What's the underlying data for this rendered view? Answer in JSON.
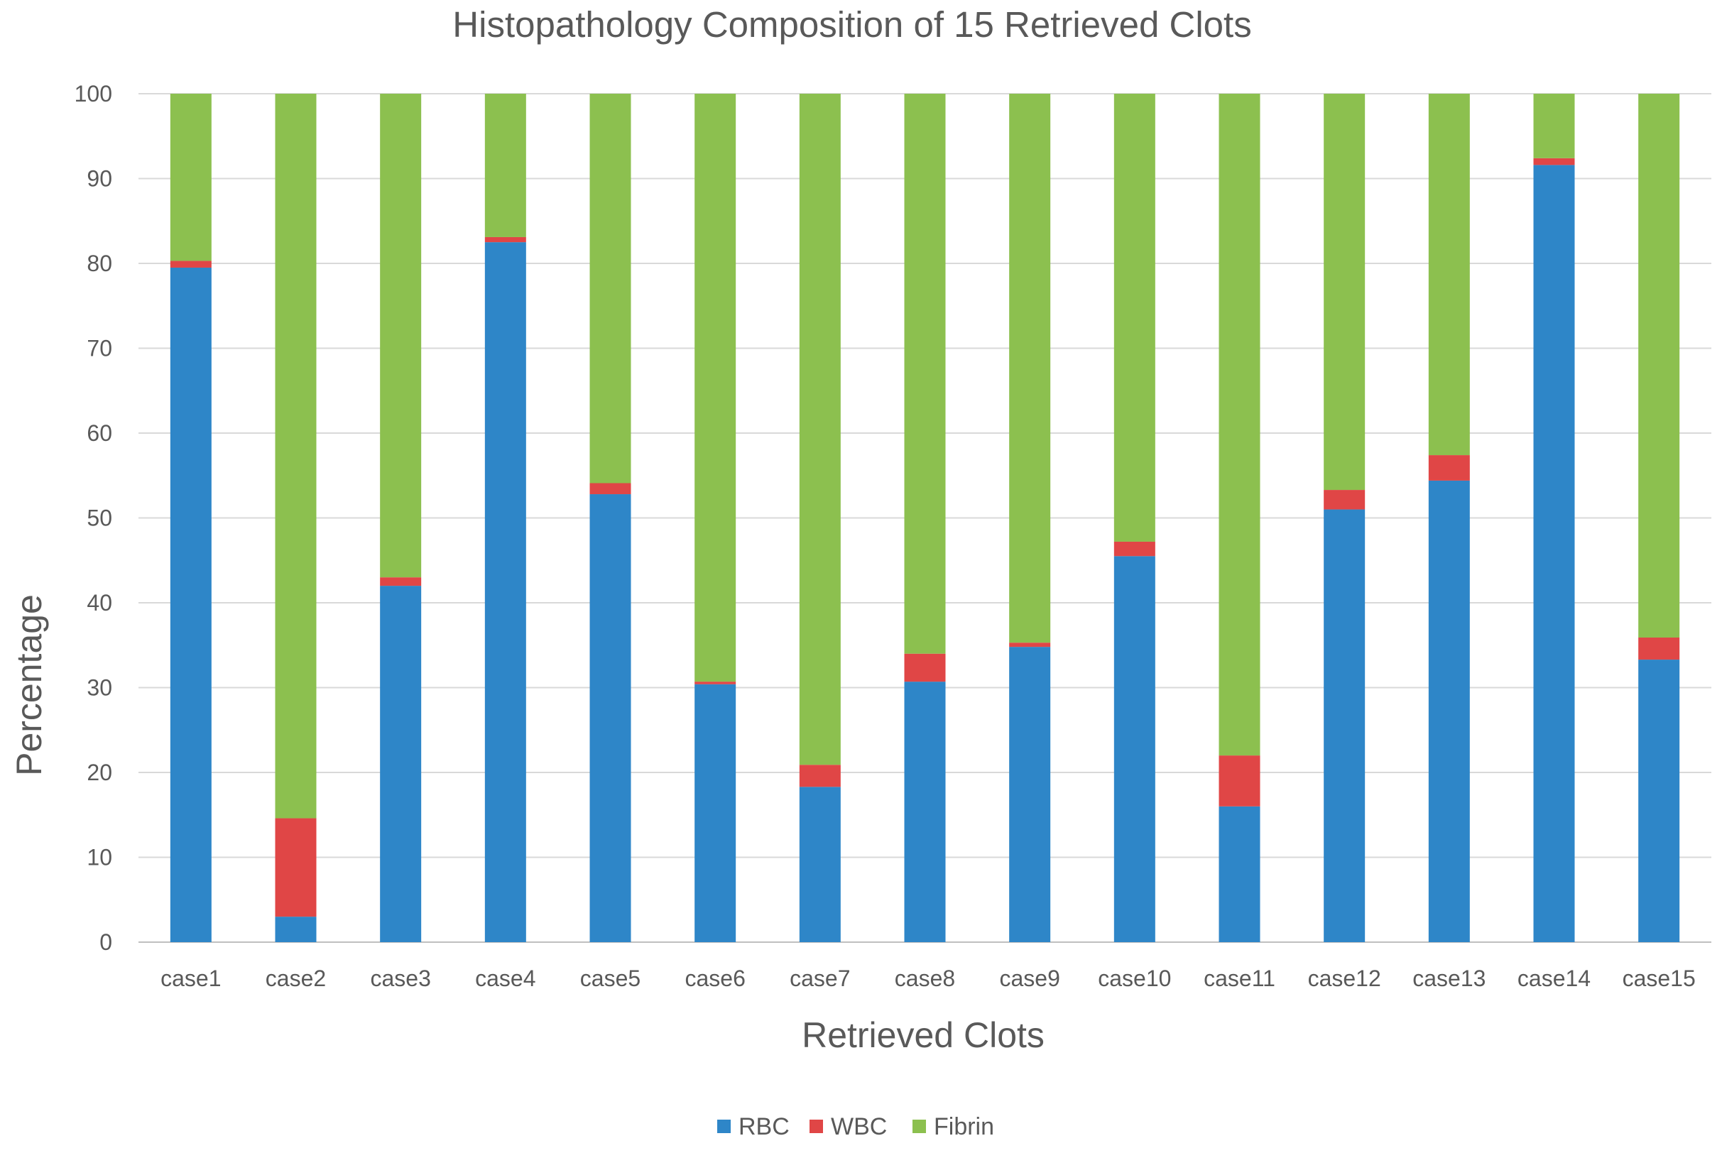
{
  "chart_data": {
    "type": "bar",
    "stacked": true,
    "title": "Histopathology Composition of 15 Retrieved Clots",
    "xlabel": "Retrieved Clots",
    "ylabel": "Percentage",
    "ylim": [
      0,
      100
    ],
    "yticks": [
      "0",
      "10",
      "20",
      "30",
      "40",
      "50",
      "60",
      "70",
      "80",
      "90",
      "100"
    ],
    "grid": true,
    "legend_position": "bottom",
    "categories": [
      "case1",
      "case2",
      "case3",
      "case4",
      "case5",
      "case6",
      "case7",
      "case8",
      "case9",
      "case10",
      "case11",
      "case12",
      "case13",
      "case14",
      "case15"
    ],
    "series": [
      {
        "name": "RBC",
        "color": "#2e86c8",
        "values": [
          79.5,
          3,
          42,
          82.5,
          52.8,
          30.4,
          18.3,
          30.7,
          34.8,
          45.5,
          16,
          51,
          54.4,
          91.6,
          33.3
        ]
      },
      {
        "name": "WBC",
        "color": "#e04646",
        "values": [
          0.8,
          11.6,
          1,
          0.6,
          1.3,
          0.3,
          2.6,
          3.3,
          0.5,
          1.7,
          6,
          2.3,
          3,
          0.8,
          2.6
        ]
      },
      {
        "name": "Fibrin",
        "color": "#8cc04f",
        "values": [
          19.7,
          85.4,
          57,
          16.9,
          45.9,
          69.3,
          79.1,
          66,
          64.7,
          52.8,
          78,
          46.7,
          42.6,
          7.6,
          64.1
        ]
      }
    ]
  }
}
